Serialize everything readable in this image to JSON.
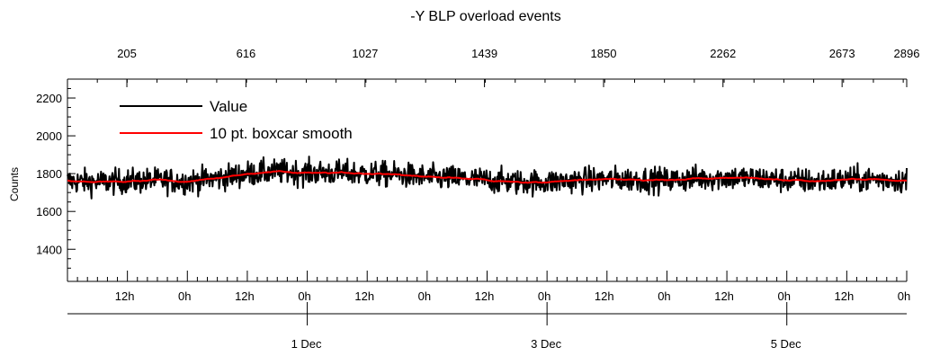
{
  "chart_data": {
    "type": "line",
    "title": "-Y BLP overload events",
    "ylabel": "Counts",
    "xlabel": "",
    "ylim": [
      1230,
      2300
    ],
    "yticks": [
      1400,
      1600,
      1800,
      2000,
      2200
    ],
    "x_range_hours": [
      0,
      168
    ],
    "top_axis": {
      "ticks": [
        205,
        616,
        1027,
        1439,
        1850,
        2262,
        2673,
        2896
      ],
      "range": [
        0,
        2896
      ]
    },
    "hour_ticks": [
      {
        "hour": 12,
        "label": "12h"
      },
      {
        "hour": 24,
        "label": "0h"
      },
      {
        "hour": 36,
        "label": "12h"
      },
      {
        "hour": 48,
        "label": "0h"
      },
      {
        "hour": 60,
        "label": "12h"
      },
      {
        "hour": 72,
        "label": "0h"
      },
      {
        "hour": 84,
        "label": "12h"
      },
      {
        "hour": 96,
        "label": "0h"
      },
      {
        "hour": 108,
        "label": "12h"
      },
      {
        "hour": 120,
        "label": "0h"
      },
      {
        "hour": 132,
        "label": "12h"
      },
      {
        "hour": 144,
        "label": "0h"
      },
      {
        "hour": 156,
        "label": "12h"
      },
      {
        "hour": 168,
        "label": "0h"
      }
    ],
    "date_ticks": [
      {
        "hour": 48,
        "label": "1 Dec"
      },
      {
        "hour": 96,
        "label": "3 Dec"
      },
      {
        "hour": 144,
        "label": "5 Dec"
      }
    ],
    "legend_position": "top-left",
    "series": [
      {
        "name": "Value",
        "color": "#000000",
        "kind": "noisy",
        "x": [
          0,
          6,
          12,
          18,
          24,
          30,
          36,
          42,
          48,
          54,
          60,
          66,
          72,
          78,
          84,
          90,
          96,
          102,
          108,
          114,
          120,
          126,
          132,
          138,
          144,
          150,
          156,
          162,
          168
        ],
        "values": [
          1760,
          1755,
          1760,
          1765,
          1760,
          1775,
          1800,
          1810,
          1805,
          1805,
          1800,
          1795,
          1780,
          1775,
          1765,
          1755,
          1755,
          1765,
          1770,
          1770,
          1765,
          1775,
          1780,
          1775,
          1765,
          1760,
          1770,
          1770,
          1765
        ],
        "spread": 60,
        "min": 1610,
        "max": 1965
      },
      {
        "name": "10 pt. boxcar smooth",
        "color": "#ff0000",
        "kind": "smooth",
        "x": [
          0,
          6,
          12,
          18,
          24,
          30,
          36,
          42,
          48,
          54,
          60,
          66,
          72,
          78,
          84,
          90,
          96,
          102,
          108,
          114,
          120,
          126,
          132,
          138,
          144,
          150,
          156,
          162,
          168
        ],
        "values": [
          1760,
          1755,
          1760,
          1765,
          1760,
          1775,
          1800,
          1810,
          1805,
          1805,
          1800,
          1795,
          1780,
          1775,
          1765,
          1755,
          1755,
          1765,
          1770,
          1770,
          1765,
          1775,
          1780,
          1775,
          1765,
          1760,
          1770,
          1770,
          1765
        ]
      }
    ]
  }
}
